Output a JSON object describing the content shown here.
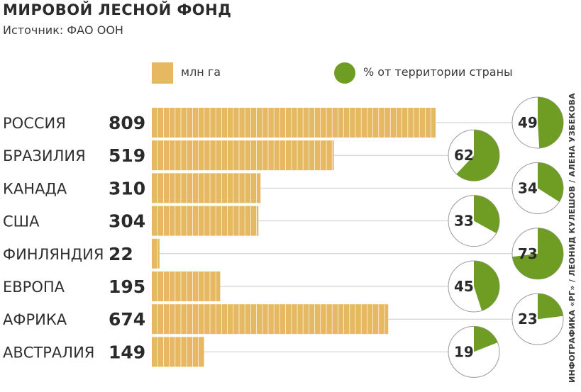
{
  "header": {
    "title": "МИРОВОЙ ЛЕСНОЙ ФОНД",
    "subtitle": "Источник: ФАО ООН"
  },
  "legend": {
    "bar_label": "млн га",
    "pct_label": "% от территории страны"
  },
  "credit": "ИНФОГРАФИКА «РГ» / ЛЕОНИД КУЛЕШОВ / АЛЕНА УЗБЕКОВА",
  "colors": {
    "bar": "#e7b862",
    "pie": "#6f9d23",
    "pie_bg": "#ffffff",
    "line": "#c9c9c9"
  },
  "chart_data": {
    "type": "bar",
    "categories": [
      "РОССИЯ",
      "БРАЗИЛИЯ",
      "КАНАДА",
      "США",
      "ФИНЛЯНДИЯ",
      "ЕВРОПА",
      "АФРИКА",
      "АВСТРАЛИЯ"
    ],
    "series": [
      {
        "name": "млн га",
        "values": [
          809,
          519,
          310,
          304,
          22,
          195,
          674,
          149
        ]
      },
      {
        "name": "% от территории страны",
        "values": [
          49,
          62,
          34,
          33,
          73,
          45,
          23,
          19
        ]
      }
    ],
    "value_labels": [
      "809",
      "519",
      "310",
      "304",
      "22",
      "195",
      "674",
      "149"
    ],
    "pct_labels": [
      "49",
      "62",
      "34",
      "33",
      "73",
      "45",
      "23",
      "19"
    ],
    "xlim": [
      0,
      809
    ],
    "grid": false
  }
}
